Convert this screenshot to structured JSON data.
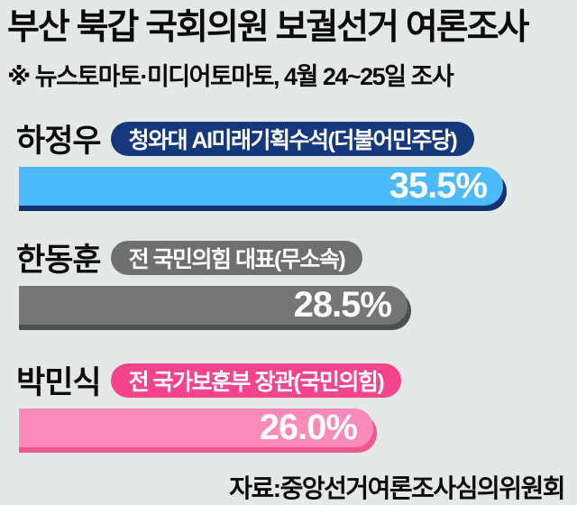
{
  "page": {
    "background_color": "#e4e9e7"
  },
  "header": {
    "title": "부산 북갑 국회의원 보궐선거 여론조사",
    "subtitle": "※ 뉴스토마토·미디어토마토, 4월 24~25일 조사"
  },
  "chart_data": {
    "type": "bar",
    "orientation": "horizontal",
    "unit": "%",
    "title": "부산 북갑 국회의원 보궐선거 여론조사",
    "categories": [
      "하정우",
      "한동훈",
      "박민식"
    ],
    "values": [
      35.5,
      28.5,
      26.0
    ],
    "xlim": [
      0,
      42
    ],
    "grid": false,
    "legend": false,
    "bars": [
      {
        "name": "하정우",
        "role": "청와대 AI미래기획수석(더불어민주당)",
        "value": 35.5,
        "value_label": "35.5%",
        "bar_color": "#4cb9fb",
        "pill_color": "#15387d",
        "shadow_color": "#12336f"
      },
      {
        "name": "한동훈",
        "role": "전 국민의힘 대표(무소속)",
        "value": 28.5,
        "value_label": "28.5%",
        "bar_color": "#767676",
        "pill_color": "#6f6f6f",
        "shadow_color": "#4c504e"
      },
      {
        "name": "박민식",
        "role": "전 국가보훈부 장관(국민의힘)",
        "value": 26.0,
        "value_label": "26.0%",
        "bar_color": "#fa8ab8",
        "pill_color": "#f5438c",
        "shadow_color": "#f2568f"
      }
    ]
  },
  "footer": {
    "source": "자료:중앙선거여론조사심의위원회"
  }
}
